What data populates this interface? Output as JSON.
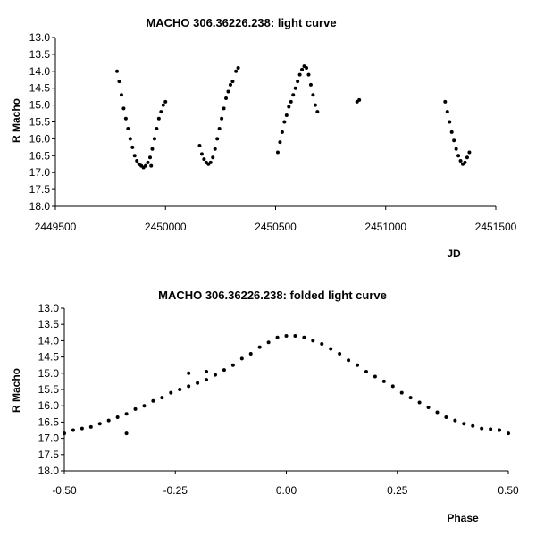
{
  "chart_data": [
    {
      "type": "scatter",
      "title": "MACHO 306.36226.238: light curve",
      "xlabel": "JD",
      "ylabel": "R Macho",
      "xlim": [
        2449500,
        2451500
      ],
      "ylim": [
        13.0,
        18.0
      ],
      "y_inverted": true,
      "x_ticks": [
        "2449500",
        "2450000",
        "2450500",
        "2451000",
        "2451500"
      ],
      "y_ticks": [
        "13.0",
        "13.5",
        "14.0",
        "14.5",
        "15.0",
        "15.5",
        "16.0",
        "16.5",
        "17.0",
        "17.5",
        "18.0"
      ],
      "grid": false,
      "legend": "none",
      "marker_color": "#000000",
      "points": [
        [
          2449780,
          14.0
        ],
        [
          2449790,
          14.3
        ],
        [
          2449800,
          14.7
        ],
        [
          2449810,
          15.1
        ],
        [
          2449820,
          15.4
        ],
        [
          2449830,
          15.7
        ],
        [
          2449840,
          16.0
        ],
        [
          2449850,
          16.25
        ],
        [
          2449860,
          16.5
        ],
        [
          2449870,
          16.65
        ],
        [
          2449880,
          16.75
        ],
        [
          2449890,
          16.8
        ],
        [
          2449900,
          16.85
        ],
        [
          2449910,
          16.8
        ],
        [
          2449920,
          16.7
        ],
        [
          2449930,
          16.55
        ],
        [
          2449940,
          16.3
        ],
        [
          2449950,
          16.0
        ],
        [
          2449960,
          15.7
        ],
        [
          2449970,
          15.4
        ],
        [
          2449980,
          15.2
        ],
        [
          2449990,
          15.0
        ],
        [
          2450000,
          14.9
        ],
        [
          2449935,
          16.8
        ],
        [
          2450155,
          16.2
        ],
        [
          2450165,
          16.45
        ],
        [
          2450175,
          16.6
        ],
        [
          2450185,
          16.7
        ],
        [
          2450195,
          16.75
        ],
        [
          2450205,
          16.7
        ],
        [
          2450215,
          16.55
        ],
        [
          2450225,
          16.3
        ],
        [
          2450235,
          16.0
        ],
        [
          2450245,
          15.7
        ],
        [
          2450255,
          15.4
        ],
        [
          2450265,
          15.1
        ],
        [
          2450275,
          14.8
        ],
        [
          2450285,
          14.6
        ],
        [
          2450295,
          14.4
        ],
        [
          2450305,
          14.3
        ],
        [
          2450320,
          14.0
        ],
        [
          2450330,
          13.9
        ],
        [
          2450510,
          16.4
        ],
        [
          2450520,
          16.1
        ],
        [
          2450530,
          15.8
        ],
        [
          2450540,
          15.5
        ],
        [
          2450550,
          15.3
        ],
        [
          2450560,
          15.05
        ],
        [
          2450570,
          14.9
        ],
        [
          2450580,
          14.7
        ],
        [
          2450590,
          14.5
        ],
        [
          2450600,
          14.3
        ],
        [
          2450610,
          14.1
        ],
        [
          2450620,
          13.95
        ],
        [
          2450630,
          13.85
        ],
        [
          2450640,
          13.9
        ],
        [
          2450650,
          14.1
        ],
        [
          2450660,
          14.4
        ],
        [
          2450670,
          14.7
        ],
        [
          2450680,
          15.0
        ],
        [
          2450690,
          15.2
        ],
        [
          2450870,
          14.9
        ],
        [
          2450880,
          14.85
        ],
        [
          2451270,
          14.9
        ],
        [
          2451280,
          15.2
        ],
        [
          2451290,
          15.5
        ],
        [
          2451300,
          15.8
        ],
        [
          2451310,
          16.05
        ],
        [
          2451320,
          16.3
        ],
        [
          2451330,
          16.5
        ],
        [
          2451340,
          16.65
        ],
        [
          2451350,
          16.75
        ],
        [
          2451360,
          16.7
        ],
        [
          2451370,
          16.55
        ],
        [
          2451380,
          16.4
        ]
      ]
    },
    {
      "type": "scatter",
      "title": "MACHO 306.36226.238: folded light curve",
      "xlabel": "Phase",
      "ylabel": "R Macho",
      "xlim": [
        -0.5,
        0.5
      ],
      "ylim": [
        13.0,
        18.0
      ],
      "y_inverted": true,
      "x_ticks": [
        "-0.50",
        "-0.25",
        "0.00",
        "0.25",
        "0.50"
      ],
      "y_ticks": [
        "13.0",
        "13.5",
        "14.0",
        "14.5",
        "15.0",
        "15.5",
        "16.0",
        "16.5",
        "17.0",
        "17.5",
        "18.0"
      ],
      "grid": false,
      "legend": "none",
      "marker_color": "#000000",
      "points": [
        [
          -0.5,
          16.85
        ],
        [
          -0.48,
          16.75
        ],
        [
          -0.46,
          16.7
        ],
        [
          -0.44,
          16.65
        ],
        [
          -0.42,
          16.55
        ],
        [
          -0.4,
          16.45
        ],
        [
          -0.38,
          16.35
        ],
        [
          -0.36,
          16.25
        ],
        [
          -0.34,
          16.1
        ],
        [
          -0.32,
          16.0
        ],
        [
          -0.3,
          15.85
        ],
        [
          -0.28,
          15.75
        ],
        [
          -0.26,
          15.6
        ],
        [
          -0.24,
          15.5
        ],
        [
          -0.22,
          15.4
        ],
        [
          -0.2,
          15.3
        ],
        [
          -0.18,
          15.2
        ],
        [
          -0.16,
          15.05
        ],
        [
          -0.14,
          14.9
        ],
        [
          -0.12,
          14.75
        ],
        [
          -0.1,
          14.55
        ],
        [
          -0.08,
          14.4
        ],
        [
          -0.06,
          14.2
        ],
        [
          -0.04,
          14.05
        ],
        [
          -0.02,
          13.9
        ],
        [
          0.0,
          13.85
        ],
        [
          0.02,
          13.85
        ],
        [
          0.04,
          13.9
        ],
        [
          0.06,
          14.0
        ],
        [
          0.08,
          14.1
        ],
        [
          0.1,
          14.25
        ],
        [
          0.12,
          14.4
        ],
        [
          0.14,
          14.6
        ],
        [
          0.16,
          14.75
        ],
        [
          0.18,
          14.95
        ],
        [
          0.2,
          15.1
        ],
        [
          0.22,
          15.25
        ],
        [
          0.24,
          15.4
        ],
        [
          0.26,
          15.6
        ],
        [
          0.28,
          15.75
        ],
        [
          0.3,
          15.9
        ],
        [
          0.32,
          16.05
        ],
        [
          0.34,
          16.2
        ],
        [
          0.36,
          16.35
        ],
        [
          0.38,
          16.45
        ],
        [
          0.4,
          16.55
        ],
        [
          0.42,
          16.62
        ],
        [
          0.44,
          16.7
        ],
        [
          0.46,
          16.72
        ],
        [
          0.48,
          16.75
        ],
        [
          0.5,
          16.85
        ],
        [
          -0.36,
          16.85
        ],
        [
          -0.22,
          15.0
        ],
        [
          -0.18,
          14.95
        ]
      ]
    }
  ]
}
